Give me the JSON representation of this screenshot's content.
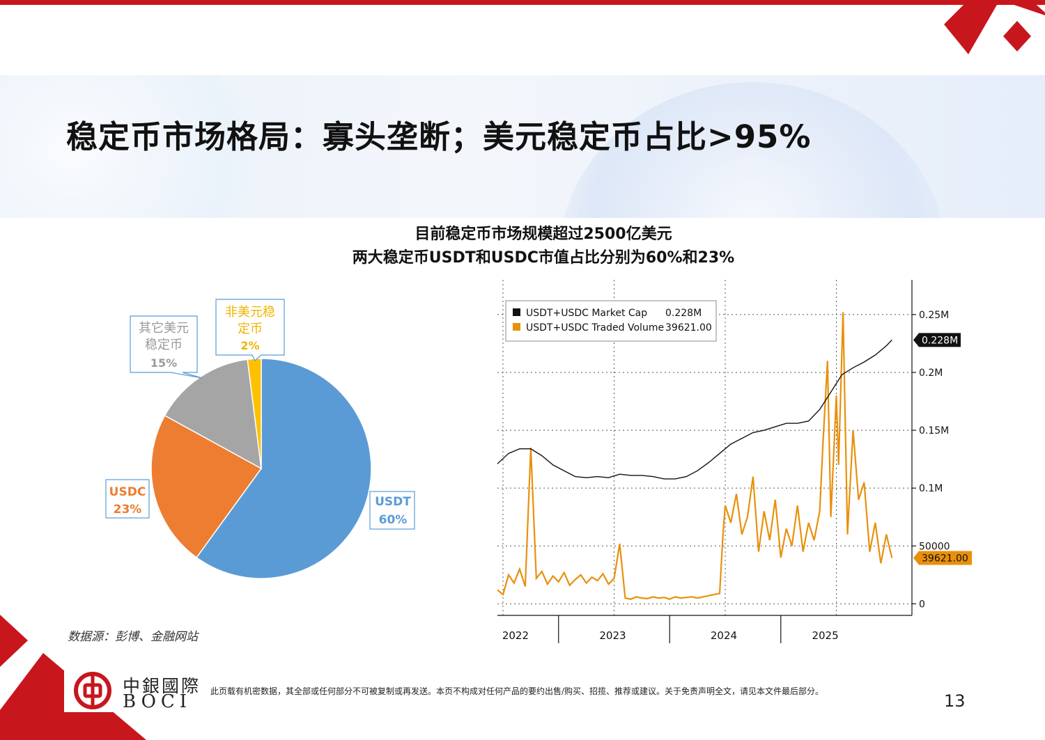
{
  "slide": {
    "title": "稳定币市场格局：寡头垄断；美元稳定币占比>95%",
    "subtitle_line1": "目前稳定币市场规模超过2500亿美元",
    "subtitle_line2": "两大稳定币USDT和USDC市值占比分别为60%和23%",
    "source": "数据源：彭博、金融网站",
    "disclaimer": "此页载有机密数据，其全部或任何部分不可被复制或再发送。本页不构成对任何产品的要约出售/购买、招揽、推荐或建议。关于免责声明全文，请见本文件最后部分。",
    "page_number": "13"
  },
  "brand": {
    "name_cn": "中銀國際",
    "name_en": "BOCI",
    "primary_color": "#c8161d"
  },
  "chart_data": [
    {
      "type": "pie",
      "slices": [
        {
          "label_line1": "USDT",
          "label_line2": "",
          "pct_text": "60%",
          "value": 60,
          "color": "#5b9bd5"
        },
        {
          "label_line1": "USDC",
          "label_line2": "",
          "pct_text": "23%",
          "value": 23,
          "color": "#ed7d31"
        },
        {
          "label_line1": "其它美元",
          "label_line2": "稳定币",
          "pct_text": "15%",
          "value": 15,
          "color": "#a5a5a5"
        },
        {
          "label_line1": "非美元稳",
          "label_line2": "定币",
          "pct_text": "2%",
          "value": 2,
          "color": "#ffc000"
        }
      ]
    },
    {
      "type": "line",
      "x_tick_labels": [
        "2022",
        "2023",
        "2024",
        "2025"
      ],
      "y_tick_labels": [
        "0",
        "50000",
        "0.1M",
        "0.15M",
        "0.2M",
        "0.25M"
      ],
      "ylim": [
        0,
        280000
      ],
      "legend": {
        "position": "top-left",
        "items": [
          {
            "name": "USDT+USDC Market Cap",
            "value_text": "0.228M",
            "color": "#111111"
          },
          {
            "name": "USDT+USDC Traded Volume",
            "value_text": "39621.00",
            "color": "#e8900c"
          }
        ]
      },
      "last_value_tags": [
        {
          "text": "0.228M",
          "value": 228000,
          "bg": "#111111",
          "fg": "#ffffff"
        },
        {
          "text": "39621.00",
          "value": 39621,
          "bg": "#e8900c",
          "fg": "#111111"
        }
      ],
      "series": [
        {
          "name": "USDT+USDC Market Cap",
          "color": "#111111",
          "x": [
            2021.95,
            2022.05,
            2022.15,
            2022.25,
            2022.35,
            2022.45,
            2022.55,
            2022.65,
            2022.75,
            2022.85,
            2022.95,
            2023.05,
            2023.15,
            2023.25,
            2023.35,
            2023.45,
            2023.55,
            2023.65,
            2023.75,
            2023.85,
            2023.95,
            2024.05,
            2024.15,
            2024.25,
            2024.35,
            2024.45,
            2024.55,
            2024.65,
            2024.75,
            2024.85,
            2024.95,
            2025.05,
            2025.15,
            2025.25,
            2025.35,
            2025.45,
            2025.5
          ],
          "y": [
            121000,
            130000,
            134000,
            134000,
            128000,
            120000,
            115000,
            110000,
            109000,
            110000,
            109000,
            112000,
            111000,
            111000,
            110000,
            108000,
            108000,
            110000,
            115000,
            122000,
            130000,
            138000,
            143000,
            148000,
            150000,
            153000,
            156000,
            156000,
            158000,
            168000,
            183000,
            198000,
            204000,
            209000,
            215000,
            223000,
            228000
          ]
        },
        {
          "name": "USDT+USDC Traded Volume",
          "color": "#e8900c",
          "x": [
            2021.95,
            2022.0,
            2022.05,
            2022.1,
            2022.15,
            2022.2,
            2022.25,
            2022.3,
            2022.35,
            2022.4,
            2022.45,
            2022.5,
            2022.55,
            2022.6,
            2022.65,
            2022.7,
            2022.75,
            2022.8,
            2022.85,
            2022.9,
            2022.95,
            2023.0,
            2023.05,
            2023.1,
            2023.15,
            2023.2,
            2023.25,
            2023.3,
            2023.35,
            2023.4,
            2023.45,
            2023.5,
            2023.55,
            2023.6,
            2023.65,
            2023.7,
            2023.75,
            2023.8,
            2023.85,
            2023.9,
            2023.95,
            2023.98,
            2024.0,
            2024.05,
            2024.1,
            2024.15,
            2024.2,
            2024.25,
            2024.3,
            2024.35,
            2024.4,
            2024.45,
            2024.5,
            2024.55,
            2024.6,
            2024.65,
            2024.7,
            2024.75,
            2024.8,
            2024.85,
            2024.88,
            2024.92,
            2024.95,
            2025.0,
            2025.02,
            2025.06,
            2025.1,
            2025.15,
            2025.2,
            2025.25,
            2025.3,
            2025.35,
            2025.4,
            2025.45,
            2025.5
          ],
          "y": [
            12000,
            8000,
            25000,
            18000,
            30000,
            15000,
            135000,
            22000,
            28000,
            17000,
            24000,
            19000,
            27000,
            16000,
            21000,
            25000,
            18000,
            23000,
            20000,
            26000,
            17000,
            22000,
            52000,
            5000,
            4000,
            6000,
            5000,
            4500,
            6000,
            5000,
            5500,
            4000,
            6000,
            5000,
            5500,
            6000,
            5000,
            6000,
            7000,
            8000,
            9000,
            60000,
            85000,
            70000,
            95000,
            60000,
            75000,
            110000,
            45000,
            80000,
            55000,
            90000,
            40000,
            65000,
            50000,
            85000,
            45000,
            70000,
            55000,
            80000,
            140000,
            210000,
            75000,
            180000,
            120000,
            252000,
            60000,
            150000,
            90000,
            105000,
            45000,
            70000,
            35000,
            60000,
            39621
          ]
        }
      ]
    }
  ]
}
